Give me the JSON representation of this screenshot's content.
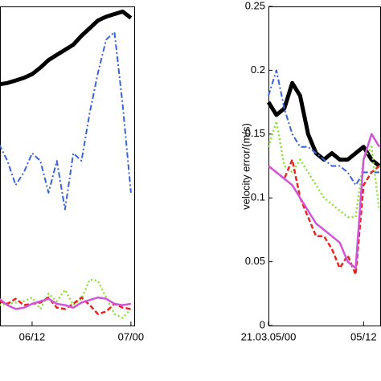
{
  "chart_data": [
    {
      "type": "line",
      "x": [
        8,
        9,
        10,
        11,
        12,
        13,
        14,
        15,
        16,
        17,
        18,
        19,
        20,
        21,
        22,
        23,
        24
      ],
      "xlim": [
        8.1,
        24.5
      ],
      "xticks": [
        {
          "value": 12,
          "label": "06/12"
        },
        {
          "value": 24,
          "label": "07/00"
        }
      ],
      "ylim": [
        0,
        0.25
      ],
      "series": [
        {
          "color": "#000000",
          "style": "solid",
          "width": 5,
          "values": [
            0.189,
            0.19,
            0.192,
            0.194,
            0.197,
            0.202,
            0.208,
            0.212,
            0.216,
            0.22,
            0.227,
            0.233,
            0.239,
            0.242,
            0.244,
            0.246,
            0.241
          ]
        },
        {
          "color": "#3a62d8",
          "style": "dashdot",
          "width": 2,
          "values": [
            0.142,
            0.129,
            0.11,
            0.12,
            0.135,
            0.129,
            0.104,
            0.129,
            0.091,
            0.135,
            0.129,
            0.167,
            0.198,
            0.224,
            0.23,
            0.173,
            0.104
          ]
        },
        {
          "color": "#8de03a",
          "style": "dotted",
          "width": 2.5,
          "values": [
            0.016,
            0.017,
            0.018,
            0.019,
            0.022,
            0.013,
            0.025,
            0.019,
            0.028,
            0.016,
            0.021,
            0.036,
            0.035,
            0.022,
            0.009,
            0.006,
            0.013
          ]
        },
        {
          "color": "#e8251f",
          "style": "dashed",
          "width": 2.5,
          "values": [
            0.019,
            0.017,
            0.021,
            0.016,
            0.017,
            0.018,
            0.022,
            0.014,
            0.013,
            0.017,
            0.022,
            0.016,
            0.009,
            0.011,
            0.017,
            0.014,
            0.013
          ]
        },
        {
          "color": "#d155d8",
          "style": "solid",
          "width": 2.5,
          "values": [
            0.021,
            0.016,
            0.013,
            0.014,
            0.017,
            0.019,
            0.021,
            0.017,
            0.016,
            0.014,
            0.018,
            0.02,
            0.022,
            0.021,
            0.017,
            0.016,
            0.017
          ]
        }
      ]
    },
    {
      "type": "line",
      "y_label": "velocity error/(m/s)",
      "x": [
        0,
        1,
        2,
        3,
        4,
        5,
        6,
        7,
        8,
        9,
        10,
        11,
        12,
        13,
        14
      ],
      "xlim": [
        0,
        14.2
      ],
      "xticks": [
        {
          "value": 0,
          "label": "21.03.05/00"
        },
        {
          "value": 12,
          "label": "05/12"
        }
      ],
      "ylim": [
        0,
        0.25
      ],
      "yticks": [
        0,
        0.05,
        0.1,
        0.15,
        0.2,
        0.25
      ],
      "series": [
        {
          "color": "#000000",
          "style": "solid",
          "width": 5,
          "values": [
            0.175,
            0.165,
            0.17,
            0.19,
            0.18,
            0.15,
            0.135,
            0.13,
            0.135,
            0.13,
            0.13,
            0.135,
            0.14,
            0.13,
            0.125
          ]
        },
        {
          "color": "#3a62d8",
          "style": "dashdot",
          "width": 2,
          "values": [
            0.18,
            0.2,
            0.17,
            0.15,
            0.14,
            0.14,
            0.135,
            0.13,
            0.125,
            0.125,
            0.12,
            0.11,
            0.12,
            0.12,
            0.12
          ]
        },
        {
          "color": "#8de03a",
          "style": "dotted",
          "width": 2.5,
          "values": [
            0.14,
            0.16,
            0.125,
            0.12,
            0.13,
            0.12,
            0.11,
            0.1,
            0.095,
            0.09,
            0.085,
            0.085,
            0.13,
            0.14,
            0.09
          ]
        },
        {
          "color": "#e8251f",
          "style": "dashed",
          "width": 2.5,
          "values": [
            0.125,
            0.12,
            0.115,
            0.13,
            0.1,
            0.085,
            0.07,
            0.07,
            0.06,
            0.045,
            0.055,
            0.04,
            0.11,
            0.12,
            0.125
          ]
        },
        {
          "color": "#d155d8",
          "style": "solid",
          "width": 2.5,
          "values": [
            0.125,
            0.12,
            0.115,
            0.11,
            0.1,
            0.09,
            0.08,
            0.075,
            0.07,
            0.065,
            0.05,
            0.045,
            0.13,
            0.15,
            0.14
          ]
        }
      ]
    }
  ]
}
